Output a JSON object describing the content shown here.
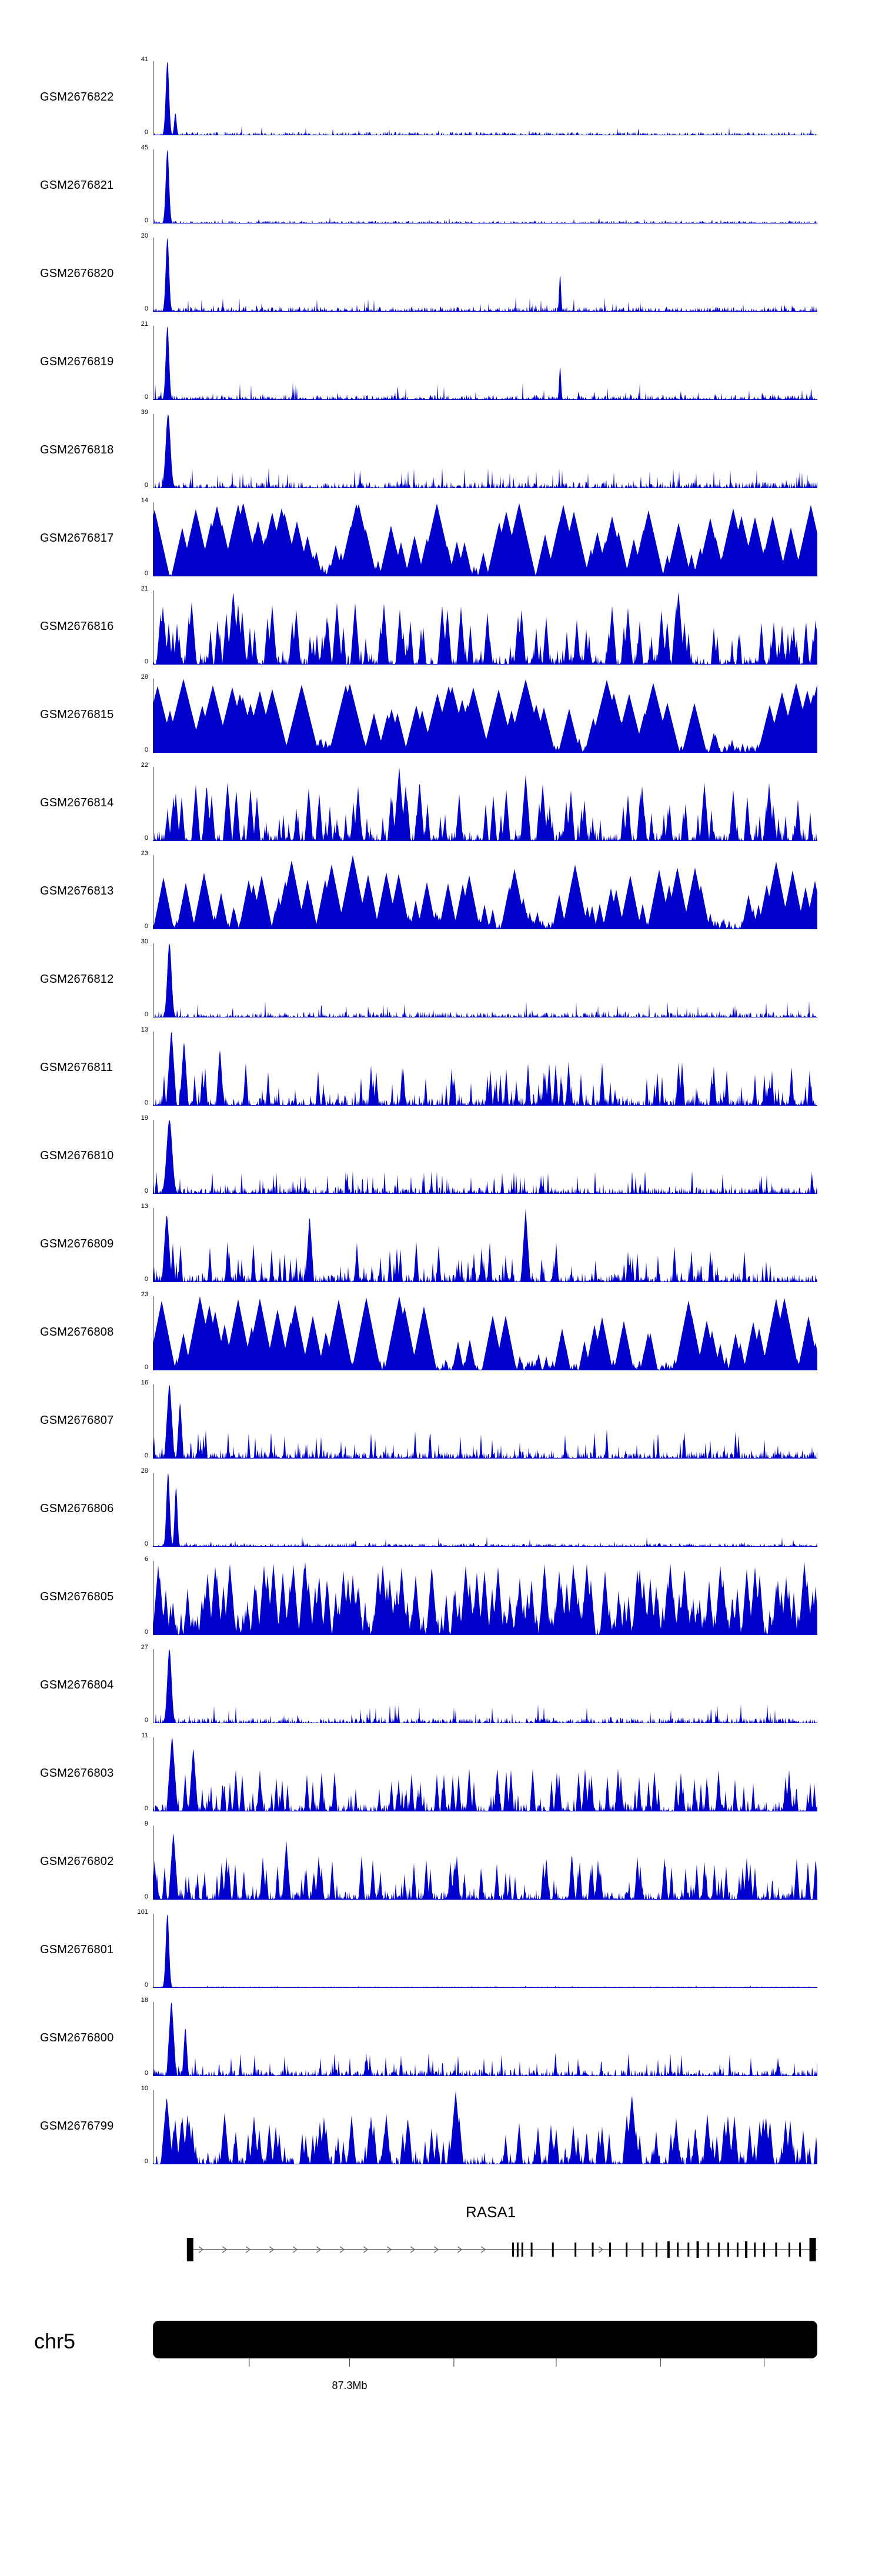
{
  "figure": {
    "background": "#ffffff",
    "signal_color": "#0000cc",
    "axis_color": "#222222",
    "gene_line_color": "#666666",
    "exon_color": "#000000"
  },
  "chart_data": {
    "type": "area",
    "layout": "stacked genome-browser coverage tracks, shared x-axis (genomic coordinates), individual y-scales",
    "note": "signal profiles are procedural approximations of the coverage shapes visible in the figure",
    "region": {
      "chromosome": "chr5",
      "coordinate_label": "87.3Mb"
    },
    "ybase_label": "0",
    "tracks": [
      {
        "name": "GSM2676822",
        "ymax": 41,
        "ymin": 0,
        "profile": {
          "seed": 11,
          "base": 0.05,
          "prob": 0.025,
          "scale": 0.14,
          "decay": 0.25,
          "peaks": [
            [
              0.021,
              1.0,
              0.0035
            ],
            [
              0.033,
              0.3,
              0.0025
            ]
          ]
        }
      },
      {
        "name": "GSM2676821",
        "ymax": 45,
        "ymin": 0,
        "profile": {
          "seed": 12,
          "base": 0.04,
          "prob": 0.02,
          "scale": 0.12,
          "decay": 0.25,
          "peaks": [
            [
              0.021,
              1.0,
              0.0035
            ]
          ]
        }
      },
      {
        "name": "GSM2676820",
        "ymax": 20,
        "ymin": 0,
        "profile": {
          "seed": 13,
          "base": 0.07,
          "prob": 0.06,
          "scale": 0.22,
          "decay": 0.2,
          "peaks": [
            [
              0.021,
              1.0,
              0.0035
            ],
            [
              0.612,
              0.5,
              0.002
            ]
          ]
        }
      },
      {
        "name": "GSM2676819",
        "ymax": 21,
        "ymin": 0,
        "profile": {
          "seed": 14,
          "base": 0.07,
          "prob": 0.06,
          "scale": 0.24,
          "decay": 0.2,
          "peaks": [
            [
              0.021,
              1.0,
              0.0035
            ],
            [
              0.612,
              0.45,
              0.002
            ]
          ]
        }
      },
      {
        "name": "GSM2676818",
        "ymax": 39,
        "ymin": 0,
        "profile": {
          "seed": 15,
          "base": 0.09,
          "prob": 0.09,
          "scale": 0.28,
          "decay": 0.18,
          "peaks": [
            [
              0.022,
              1.0,
              0.005
            ]
          ]
        }
      },
      {
        "name": "GSM2676817",
        "ymax": 14,
        "ymin": 0,
        "profile": {
          "seed": 16,
          "base": 0.14,
          "prob": 0.1,
          "scale": 1.0,
          "decay": 0.035,
          "peaks": [
            [
              0.135,
              1.0,
              0.003
            ],
            [
              0.305,
              1.0,
              0.002
            ]
          ]
        }
      },
      {
        "name": "GSM2676816",
        "ymax": 21,
        "ymin": 0,
        "profile": {
          "seed": 17,
          "base": 0.12,
          "prob": 0.15,
          "scale": 0.85,
          "decay": 0.1,
          "peaks": [
            [
              0.12,
              1.0,
              0.002
            ],
            [
              0.79,
              1.0,
              0.002
            ]
          ]
        }
      },
      {
        "name": "GSM2676815",
        "ymax": 28,
        "ymin": 0,
        "profile": {
          "seed": 18,
          "base": 0.13,
          "prob": 0.1,
          "scale": 1.0,
          "decay": 0.032,
          "peaks": [
            [
              0.045,
              1.0,
              0.003
            ],
            [
              0.56,
              1.0,
              0.002
            ]
          ]
        }
      },
      {
        "name": "GSM2676814",
        "ymax": 22,
        "ymin": 0,
        "profile": {
          "seed": 19,
          "base": 0.12,
          "prob": 0.16,
          "scale": 0.8,
          "decay": 0.1,
          "peaks": [
            [
              0.37,
              1.0,
              0.002
            ],
            [
              0.56,
              0.9,
              0.002
            ]
          ]
        }
      },
      {
        "name": "GSM2676813",
        "ymax": 23,
        "ymin": 0,
        "profile": {
          "seed": 20,
          "base": 0.13,
          "prob": 0.1,
          "scale": 0.95,
          "decay": 0.04,
          "peaks": [
            [
              0.3,
              1.0,
              0.003
            ]
          ]
        }
      },
      {
        "name": "GSM2676812",
        "ymax": 30,
        "ymin": 0,
        "profile": {
          "seed": 21,
          "base": 0.08,
          "prob": 0.07,
          "scale": 0.25,
          "decay": 0.18,
          "peaks": [
            [
              0.024,
              1.0,
              0.0045
            ]
          ]
        }
      },
      {
        "name": "GSM2676811",
        "ymax": 13,
        "ymin": 0,
        "profile": {
          "seed": 22,
          "base": 0.11,
          "prob": 0.14,
          "scale": 0.6,
          "decay": 0.12,
          "peaks": [
            [
              0.027,
              1.0,
              0.004
            ],
            [
              0.046,
              0.85,
              0.0035
            ],
            [
              0.1,
              0.75,
              0.003
            ]
          ]
        }
      },
      {
        "name": "GSM2676810",
        "ymax": 19,
        "ymin": 0,
        "profile": {
          "seed": 23,
          "base": 0.09,
          "prob": 0.1,
          "scale": 0.32,
          "decay": 0.15,
          "peaks": [
            [
              0.024,
              1.0,
              0.006
            ]
          ]
        }
      },
      {
        "name": "GSM2676809",
        "ymax": 13,
        "ymin": 0,
        "profile": {
          "seed": 24,
          "base": 0.11,
          "prob": 0.13,
          "scale": 0.55,
          "decay": 0.12,
          "peaks": [
            [
              0.02,
              0.9,
              0.0045
            ],
            [
              0.235,
              0.9,
              0.002
            ],
            [
              0.56,
              1.0,
              0.002
            ]
          ]
        }
      },
      {
        "name": "GSM2676808",
        "ymax": 23,
        "ymin": 0,
        "profile": {
          "seed": 25,
          "base": 0.14,
          "prob": 0.11,
          "scale": 1.0,
          "decay": 0.04,
          "peaks": [
            [
              0.07,
              1.0,
              0.003
            ],
            [
              0.37,
              1.0,
              0.002
            ]
          ]
        }
      },
      {
        "name": "GSM2676807",
        "ymax": 16,
        "ymin": 0,
        "profile": {
          "seed": 26,
          "base": 0.1,
          "prob": 0.11,
          "scale": 0.4,
          "decay": 0.13,
          "peaks": [
            [
              0.024,
              1.0,
              0.0045
            ],
            [
              0.04,
              0.75,
              0.003
            ]
          ]
        }
      },
      {
        "name": "GSM2676806",
        "ymax": 28,
        "ymin": 0,
        "profile": {
          "seed": 27,
          "base": 0.05,
          "prob": 0.035,
          "scale": 0.14,
          "decay": 0.2,
          "peaks": [
            [
              0.022,
              1.0,
              0.0035
            ],
            [
              0.034,
              0.8,
              0.003
            ]
          ]
        }
      },
      {
        "name": "GSM2676805",
        "ymax": 6,
        "ymin": 0,
        "profile": {
          "seed": 28,
          "base": 0.3,
          "prob": 0.3,
          "scale": 1.0,
          "decay": 0.1,
          "peaks": []
        }
      },
      {
        "name": "GSM2676804",
        "ymax": 27,
        "ymin": 0,
        "profile": {
          "seed": 29,
          "base": 0.08,
          "prob": 0.08,
          "scale": 0.26,
          "decay": 0.16,
          "peaks": [
            [
              0.024,
              1.0,
              0.0045
            ]
          ]
        }
      },
      {
        "name": "GSM2676803",
        "ymax": 11,
        "ymin": 0,
        "profile": {
          "seed": 30,
          "base": 0.11,
          "prob": 0.15,
          "scale": 0.6,
          "decay": 0.11,
          "peaks": [
            [
              0.028,
              1.0,
              0.004
            ],
            [
              0.06,
              0.85,
              0.003
            ]
          ]
        }
      },
      {
        "name": "GSM2676802",
        "ymax": 9,
        "ymin": 0,
        "profile": {
          "seed": 31,
          "base": 0.11,
          "prob": 0.14,
          "scale": 0.6,
          "decay": 0.11,
          "peaks": [
            [
              0.03,
              0.9,
              0.003
            ],
            [
              0.2,
              0.8,
              0.002
            ]
          ]
        }
      },
      {
        "name": "GSM2676801",
        "ymax": 101,
        "ymin": 0,
        "profile": {
          "seed": 32,
          "base": 0.02,
          "prob": 0.008,
          "scale": 0.06,
          "decay": 0.25,
          "peaks": [
            [
              0.021,
              1.0,
              0.0035
            ]
          ]
        }
      },
      {
        "name": "GSM2676800",
        "ymax": 18,
        "ymin": 0,
        "profile": {
          "seed": 33,
          "base": 0.09,
          "prob": 0.1,
          "scale": 0.32,
          "decay": 0.13,
          "peaks": [
            [
              0.027,
              1.0,
              0.004
            ],
            [
              0.048,
              0.65,
              0.003
            ]
          ]
        }
      },
      {
        "name": "GSM2676799",
        "ymax": 10,
        "ymin": 0,
        "profile": {
          "seed": 34,
          "base": 0.11,
          "prob": 0.17,
          "scale": 0.7,
          "decay": 0.09,
          "peaks": [
            [
              0.02,
              0.9,
              0.003
            ],
            [
              0.455,
              1.0,
              0.002
            ],
            [
              0.72,
              0.95,
              0.002
            ]
          ]
        }
      }
    ],
    "gene": {
      "name": "RASA1",
      "direction": "right",
      "line_start": 0.056,
      "line_end": 1.0,
      "exons": [
        [
          0.056,
          11,
          40
        ],
        [
          0.542,
          3,
          24
        ],
        [
          0.549,
          3,
          24
        ],
        [
          0.556,
          3,
          24
        ],
        [
          0.57,
          3,
          24
        ],
        [
          0.602,
          3,
          24
        ],
        [
          0.636,
          3,
          24
        ],
        [
          0.662,
          3,
          24
        ],
        [
          0.688,
          3,
          24
        ],
        [
          0.713,
          3,
          24
        ],
        [
          0.737,
          3,
          24
        ],
        [
          0.758,
          3,
          24
        ],
        [
          0.776,
          4,
          28
        ],
        [
          0.79,
          3,
          24
        ],
        [
          0.806,
          3,
          24
        ],
        [
          0.82,
          4,
          28
        ],
        [
          0.836,
          3,
          24
        ],
        [
          0.852,
          3,
          24
        ],
        [
          0.866,
          3,
          24
        ],
        [
          0.88,
          3,
          24
        ],
        [
          0.893,
          4,
          28
        ],
        [
          0.906,
          3,
          24
        ],
        [
          0.92,
          3,
          24
        ],
        [
          0.938,
          3,
          24
        ],
        [
          0.958,
          3,
          24
        ],
        [
          0.974,
          3,
          24
        ],
        [
          0.993,
          11,
          40
        ]
      ]
    },
    "ideogram": {
      "label": "chr5",
      "ticks": [
        0.145,
        0.296,
        0.453,
        0.607,
        0.764,
        0.92
      ],
      "tick_labels": [
        "",
        "87.3Mb",
        "",
        "",
        "",
        ""
      ]
    }
  }
}
